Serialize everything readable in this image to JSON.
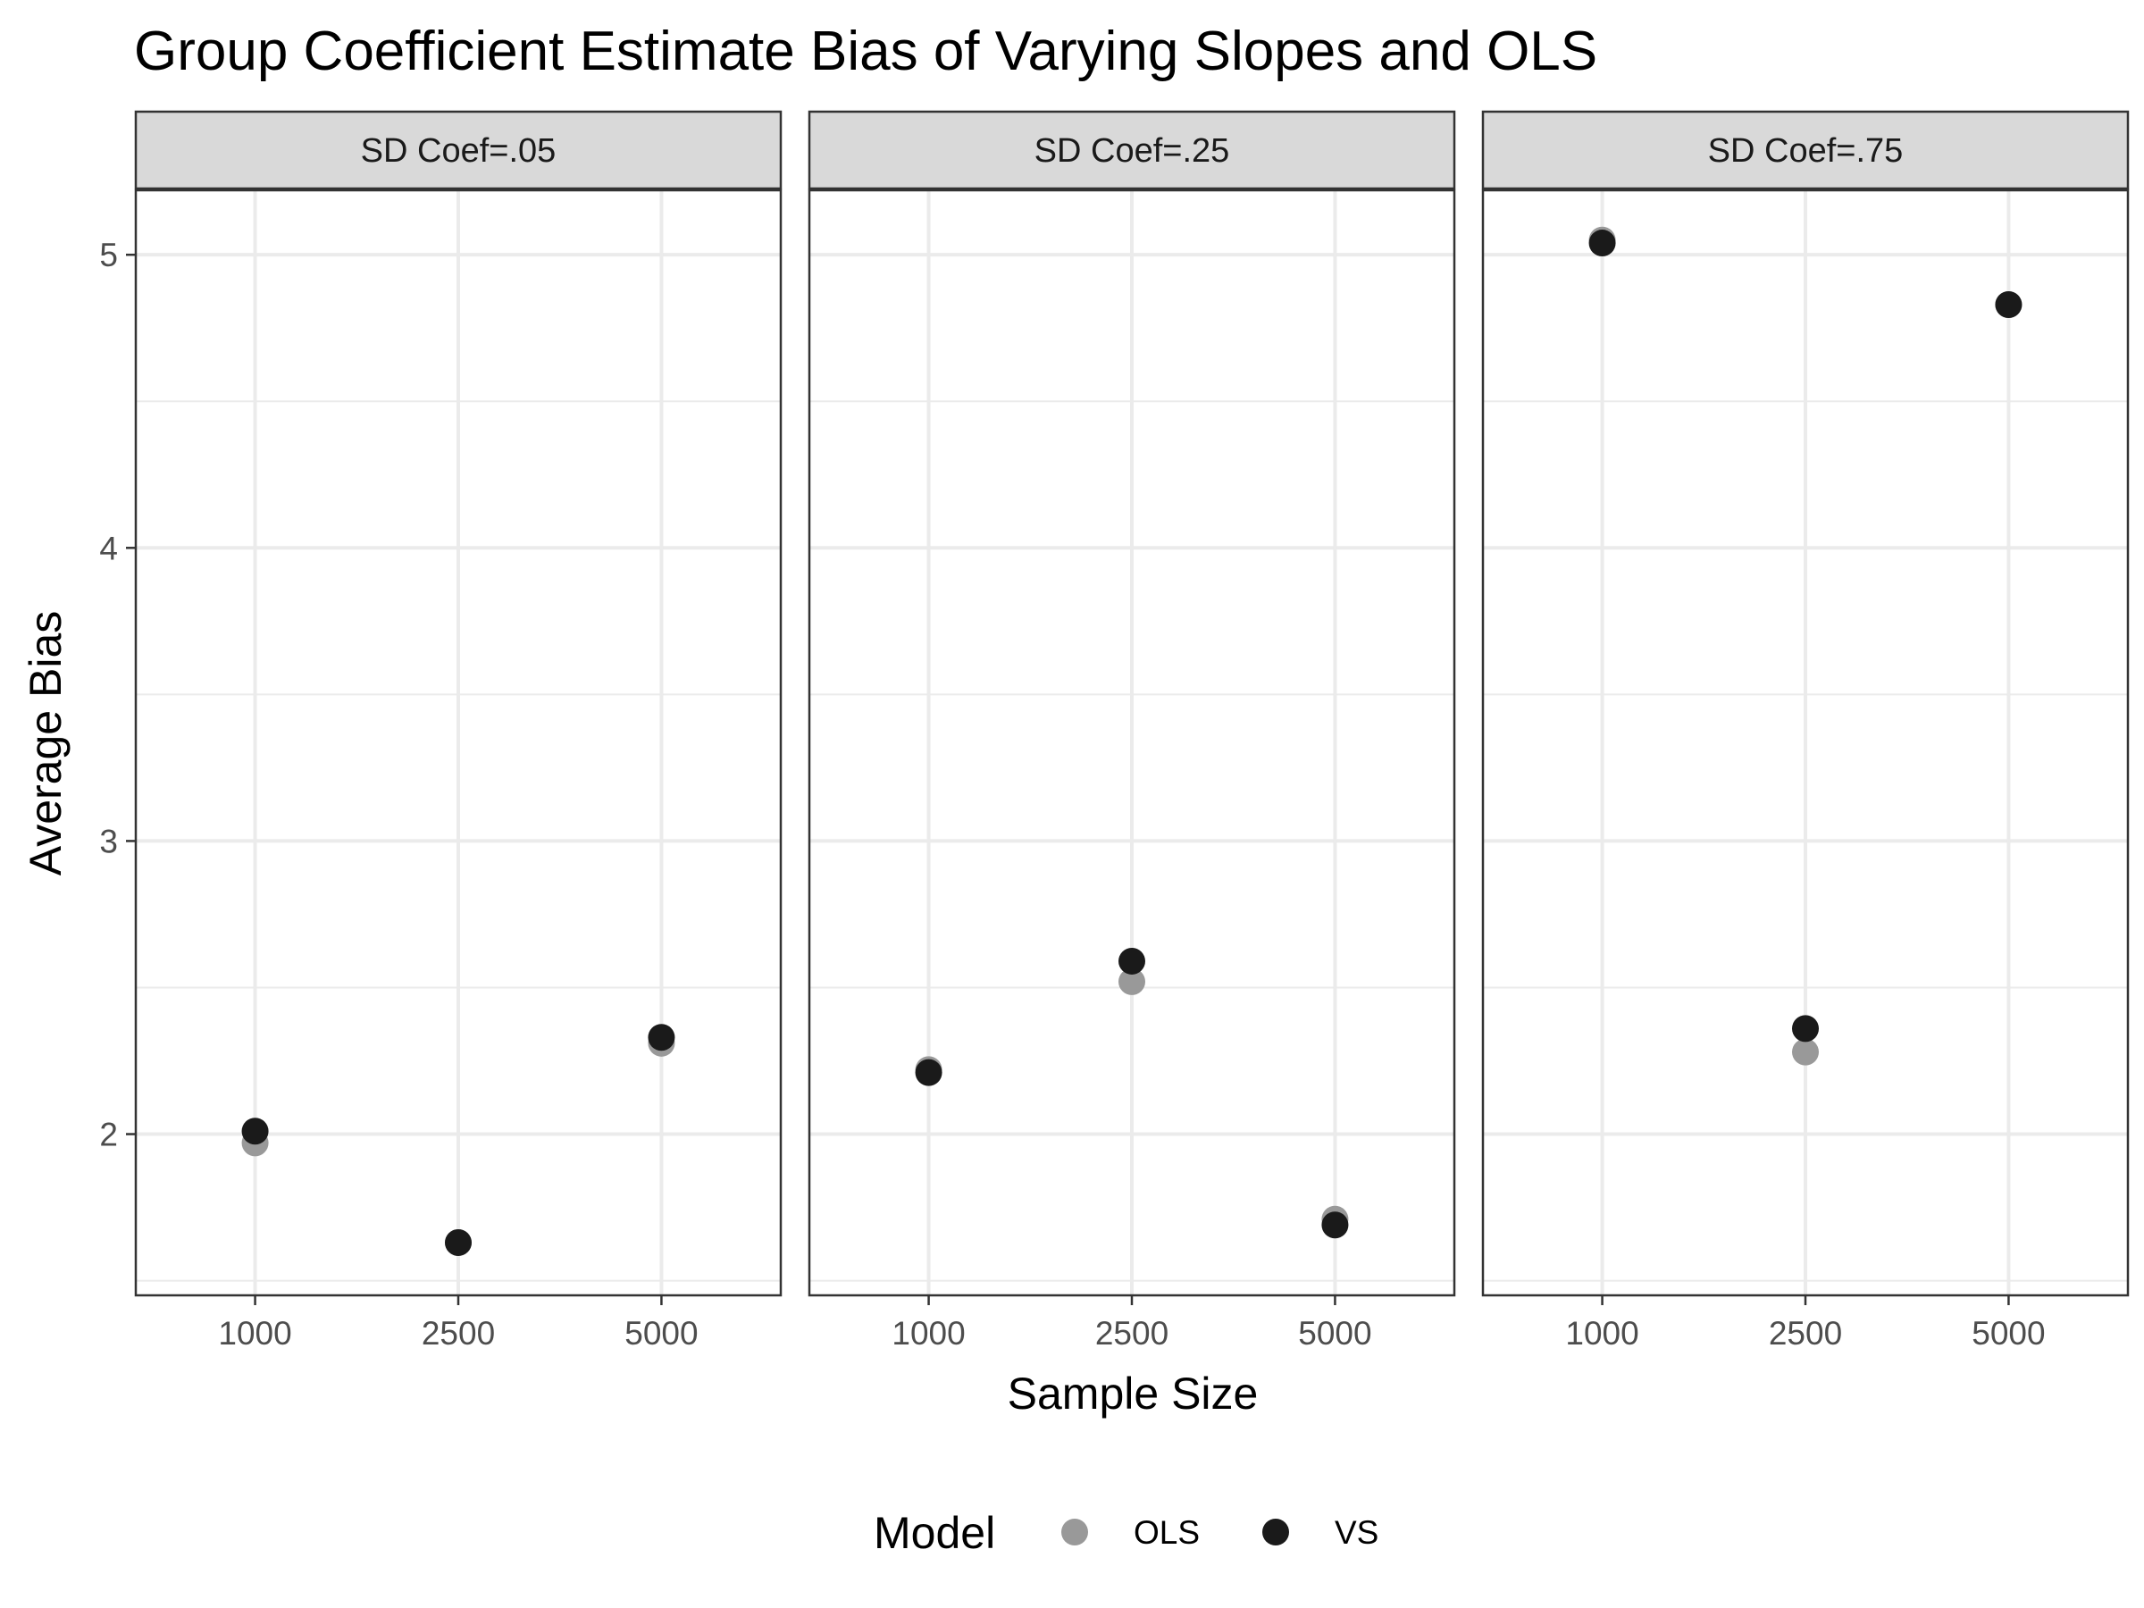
{
  "chart_data": {
    "type": "scatter",
    "title": "Group Coefficient Estimate Bias of Varying Slopes and OLS",
    "xlabel": "Sample Size",
    "ylabel": "Average Bias",
    "x_categories": [
      "1000",
      "2500",
      "5000"
    ],
    "y_ticks": [
      2,
      3,
      4,
      5
    ],
    "ylim": [
      1.45,
      5.22
    ],
    "grid": true,
    "facets": [
      {
        "label": "SD Coef=.05",
        "series": [
          {
            "name": "OLS",
            "color": "#999999",
            "x": [
              "1000",
              "2500",
              "5000"
            ],
            "y": [
              1.97,
              1.63,
              2.31
            ]
          },
          {
            "name": "VS",
            "color": "#1a1a1a",
            "x": [
              "1000",
              "2500",
              "5000"
            ],
            "y": [
              2.01,
              1.63,
              2.33
            ]
          }
        ]
      },
      {
        "label": "SD Coef=.25",
        "series": [
          {
            "name": "OLS",
            "color": "#999999",
            "x": [
              "1000",
              "2500",
              "5000"
            ],
            "y": [
              2.22,
              2.52,
              1.71
            ]
          },
          {
            "name": "VS",
            "color": "#1a1a1a",
            "x": [
              "1000",
              "2500",
              "5000"
            ],
            "y": [
              2.21,
              2.59,
              1.69
            ]
          }
        ]
      },
      {
        "label": "SD Coef=.75",
        "series": [
          {
            "name": "OLS",
            "color": "#999999",
            "x": [
              "1000",
              "2500",
              "5000"
            ],
            "y": [
              5.05,
              2.28,
              4.83
            ]
          },
          {
            "name": "VS",
            "color": "#1a1a1a",
            "x": [
              "1000",
              "2500",
              "5000"
            ],
            "y": [
              5.04,
              2.36,
              4.83
            ]
          }
        ]
      }
    ],
    "legend": {
      "title": "Model",
      "position": "bottom",
      "items": [
        {
          "label": "OLS",
          "color": "#999999"
        },
        {
          "label": "VS",
          "color": "#1a1a1a"
        }
      ]
    }
  }
}
